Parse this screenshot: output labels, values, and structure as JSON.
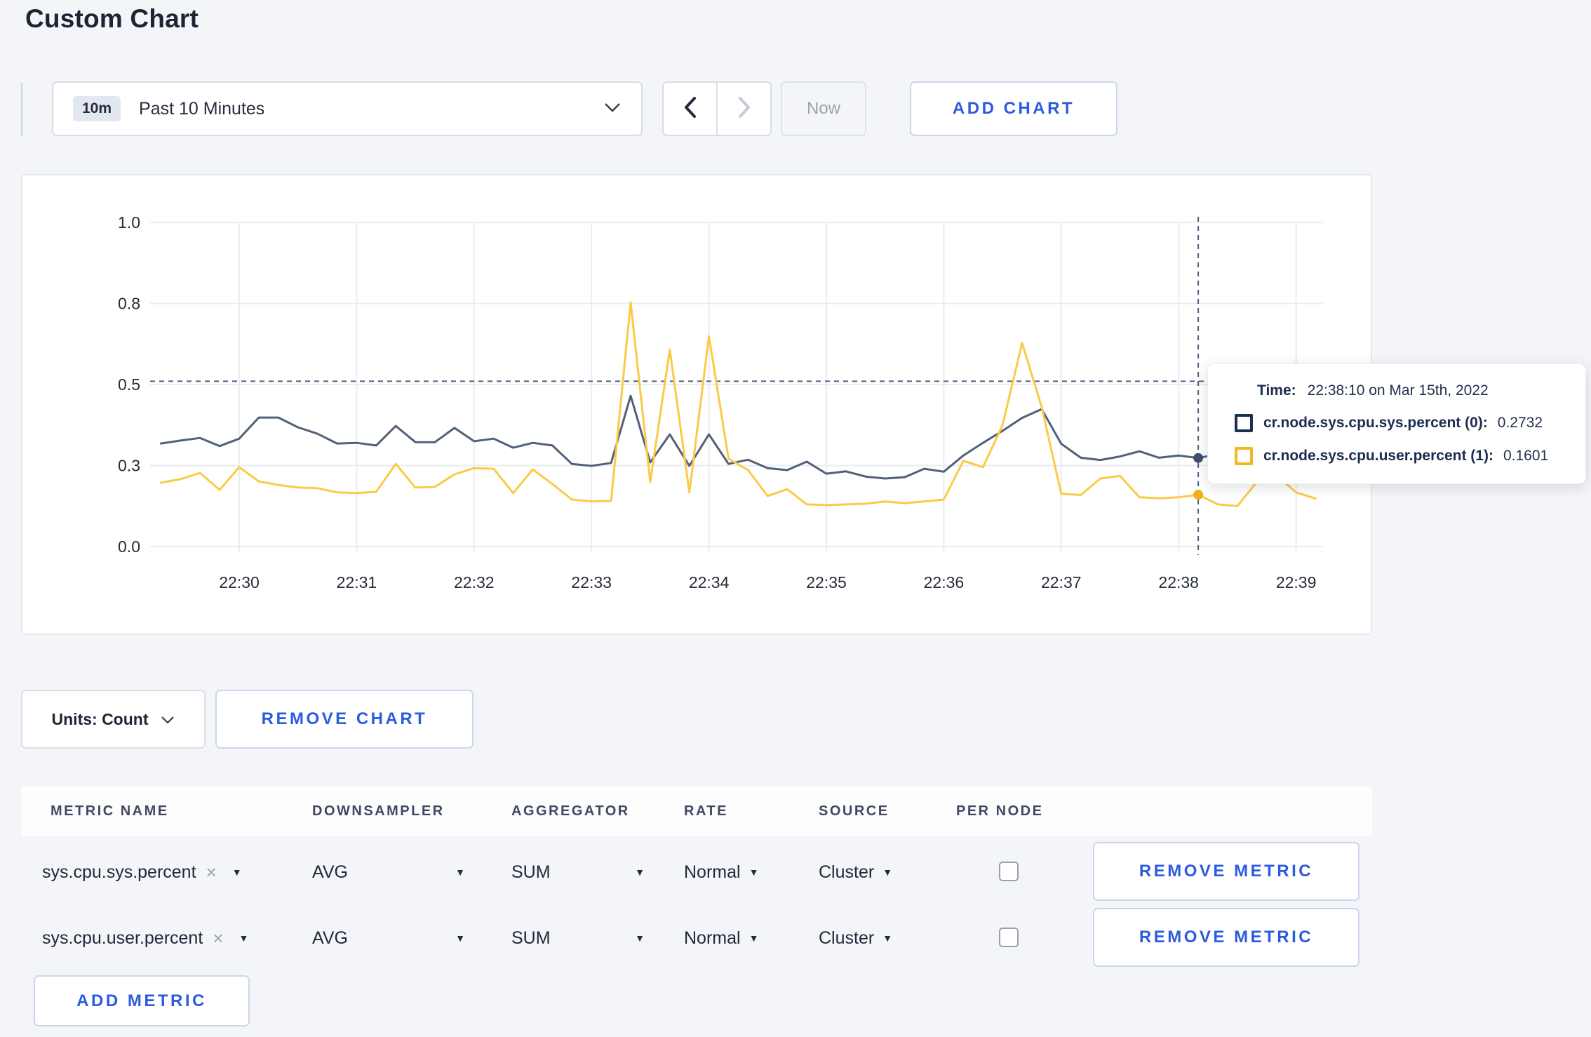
{
  "page": {
    "title": "Custom Chart"
  },
  "toolbar": {
    "time_badge": "10m",
    "time_label": "Past 10 Minutes",
    "now_label": "Now",
    "add_chart_label": "ADD CHART"
  },
  "icons": {
    "close": "×",
    "caret_down": "▼"
  },
  "colors": {
    "accent_blue": "#2b5be0",
    "series_sys": "#52607a",
    "series_user": "#fbca47",
    "crosshair": "#4d5f7e"
  },
  "tooltip": {
    "time_label": "Time:",
    "time_value": "22:38:10 on Mar 15th, 2022",
    "series": [
      {
        "label": "cr.node.sys.cpu.sys.percent (0):",
        "value": "0.2732",
        "color": "#1b2f55"
      },
      {
        "label": "cr.node.sys.cpu.user.percent (1):",
        "value": "0.1601",
        "color": "#f2b824"
      }
    ]
  },
  "chart_data": {
    "type": "line",
    "title": "",
    "xlabel": "",
    "ylabel": "",
    "grid": true,
    "legend_position": "tooltip",
    "ylim": [
      0,
      1
    ],
    "x_ticks": [
      "22:30",
      "22:31",
      "22:32",
      "22:33",
      "22:34",
      "22:35",
      "22:36",
      "22:37",
      "22:38",
      "22:39"
    ],
    "y_ticks": [
      {
        "label": "1.0",
        "value": 1.0
      },
      {
        "label": "0.8",
        "value": 0.75
      },
      {
        "label": "0.5",
        "value": 0.5
      },
      {
        "label": "0.3",
        "value": 0.25
      },
      {
        "label": "0.0",
        "value": 0.0
      }
    ],
    "start_time": "22:29:20",
    "interval_seconds": 10,
    "series": [
      {
        "name": "cr.node.sys.cpu.sys.percent",
        "color": "#52607a",
        "values": [
          0.318,
          0.327,
          0.335,
          0.31,
          0.333,
          0.398,
          0.398,
          0.368,
          0.348,
          0.318,
          0.32,
          0.312,
          0.372,
          0.322,
          0.322,
          0.366,
          0.325,
          0.333,
          0.305,
          0.32,
          0.312,
          0.255,
          0.249,
          0.258,
          0.465,
          0.26,
          0.346,
          0.249,
          0.346,
          0.255,
          0.268,
          0.242,
          0.236,
          0.262,
          0.225,
          0.232,
          0.216,
          0.21,
          0.214,
          0.24,
          0.231,
          0.281,
          0.32,
          0.357,
          0.397,
          0.424,
          0.317,
          0.274,
          0.267,
          0.278,
          0.294,
          0.274,
          0.281,
          0.2732,
          0.285,
          0.295,
          0.292,
          0.305,
          0.285,
          0.3
        ]
      },
      {
        "name": "cr.node.sys.cpu.user.percent",
        "color": "#fbca47",
        "values": [
          0.197,
          0.208,
          0.227,
          0.175,
          0.245,
          0.201,
          0.19,
          0.182,
          0.18,
          0.167,
          0.165,
          0.169,
          0.255,
          0.182,
          0.184,
          0.223,
          0.242,
          0.24,
          0.165,
          0.238,
          0.193,
          0.145,
          0.139,
          0.141,
          0.753,
          0.199,
          0.608,
          0.167,
          0.649,
          0.271,
          0.236,
          0.156,
          0.177,
          0.13,
          0.128,
          0.13,
          0.132,
          0.139,
          0.134,
          0.139,
          0.145,
          0.265,
          0.245,
          0.374,
          0.628,
          0.431,
          0.163,
          0.159,
          0.21,
          0.218,
          0.152,
          0.149,
          0.152,
          0.1601,
          0.13,
          0.125,
          0.2,
          0.22,
          0.167,
          0.148
        ]
      }
    ],
    "crosshair": {
      "time": "22:38:10",
      "hline_value": 0.51,
      "color": "#4d5f7e",
      "points": [
        {
          "value": 0.2732,
          "color": "#3e4f6d"
        },
        {
          "value": 0.1601,
          "color": "#efae1e"
        }
      ]
    }
  },
  "units_bar": {
    "units_label": "Units: Count",
    "remove_chart_label": "REMOVE CHART"
  },
  "metrics_table": {
    "headers": [
      "METRIC NAME",
      "DOWNSAMPLER",
      "AGGREGATOR",
      "RATE",
      "SOURCE",
      "PER NODE"
    ],
    "rows": [
      {
        "metric": "sys.cpu.sys.percent",
        "downsampler": "AVG",
        "aggregator": "SUM",
        "rate": "Normal",
        "source": "Cluster",
        "per_node_checked": false,
        "remove_label": "REMOVE METRIC"
      },
      {
        "metric": "sys.cpu.user.percent",
        "downsampler": "AVG",
        "aggregator": "SUM",
        "rate": "Normal",
        "source": "Cluster",
        "per_node_checked": false,
        "remove_label": "REMOVE METRIC"
      }
    ],
    "add_metric_label": "ADD METRIC"
  }
}
